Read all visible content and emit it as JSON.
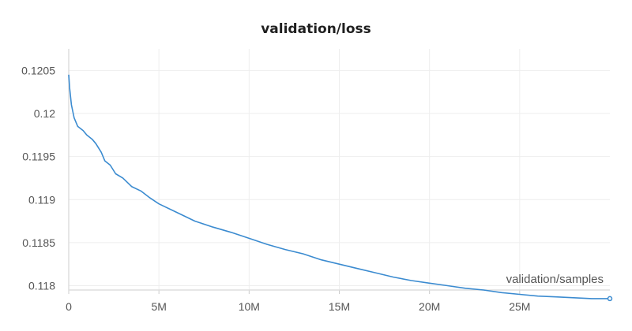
{
  "chart_data": {
    "type": "line",
    "title": "validation/loss",
    "xlabel": "validation/samples",
    "ylabel": "",
    "xlim": [
      0,
      30000000
    ],
    "ylim": [
      0.11795,
      0.12075
    ],
    "grid": true,
    "color": "#3b8bd0",
    "y_ticks": [
      0.118,
      0.1185,
      0.119,
      0.1195,
      0.12,
      0.1205
    ],
    "y_tick_labels": [
      "0.118",
      "0.1185",
      "0.119",
      "0.1195",
      "0.12",
      "0.1205"
    ],
    "x_ticks": [
      0,
      5000000,
      10000000,
      15000000,
      20000000,
      25000000
    ],
    "x_tick_labels": [
      "0",
      "5M",
      "10M",
      "15M",
      "20M",
      "25M"
    ],
    "series": [
      {
        "x": [
          0,
          50000,
          150000,
          300000,
          500000,
          800000,
          1000000,
          1300000,
          1500000,
          1800000,
          2000000,
          2300000,
          2600000,
          3000000,
          3500000,
          4000000,
          4500000,
          5000000,
          6000000,
          7000000,
          8000000,
          9000000,
          10000000,
          11000000,
          12000000,
          13000000,
          14000000,
          15000000,
          16000000,
          17000000,
          18000000,
          19000000,
          20000000,
          21000000,
          22000000,
          23000000,
          24000000,
          25000000,
          26000000,
          27000000,
          28000000,
          29000000,
          30000000
        ],
        "values": [
          0.12045,
          0.1203,
          0.1201,
          0.11995,
          0.11985,
          0.1198,
          0.11975,
          0.1197,
          0.11965,
          0.11955,
          0.11945,
          0.1194,
          0.1193,
          0.11925,
          0.11915,
          0.1191,
          0.11902,
          0.11895,
          0.11885,
          0.11875,
          0.11868,
          0.11862,
          0.11855,
          0.11848,
          0.11842,
          0.11837,
          0.1183,
          0.11825,
          0.1182,
          0.11815,
          0.1181,
          0.11806,
          0.11803,
          0.118,
          0.11797,
          0.11795,
          0.11792,
          0.1179,
          0.11788,
          0.11787,
          0.11786,
          0.11785,
          0.11785
        ]
      }
    ]
  }
}
